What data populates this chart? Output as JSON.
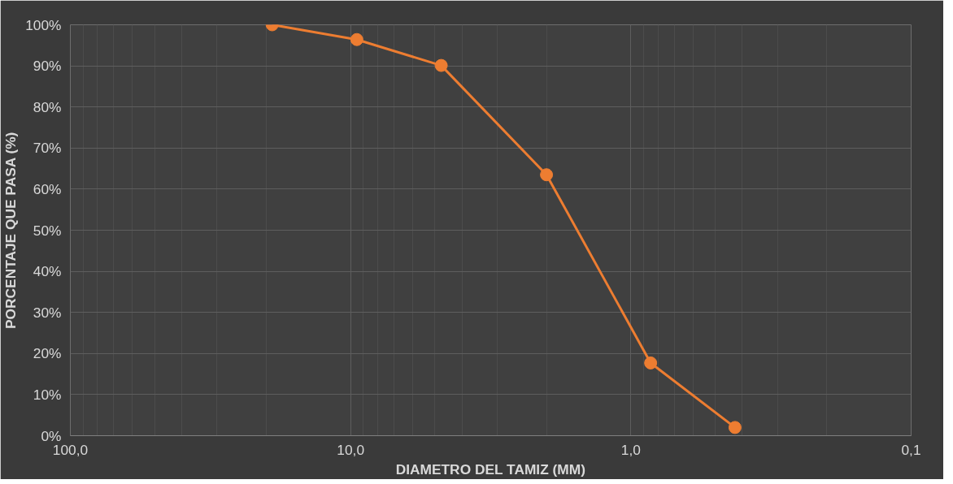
{
  "chart_data": {
    "type": "line",
    "xlabel": "DIAMETRO DEL TAMIZ (MM)",
    "ylabel": "PORCENTAJE QUE PASA (%)",
    "log": "x",
    "xlim": [
      100,
      0.1
    ],
    "xticks": [
      {
        "value": 100,
        "label": "100,0"
      },
      {
        "value": 10,
        "label": "10,0"
      },
      {
        "value": 1,
        "label": "1,0"
      },
      {
        "value": 0.1,
        "label": "0,1"
      }
    ],
    "ylim": [
      0,
      100
    ],
    "yticks": [
      {
        "value": 0,
        "label": "0%"
      },
      {
        "value": 10,
        "label": "10%"
      },
      {
        "value": 20,
        "label": "20%"
      },
      {
        "value": 30,
        "label": "30%"
      },
      {
        "value": 40,
        "label": "40%"
      },
      {
        "value": 50,
        "label": "50%"
      },
      {
        "value": 60,
        "label": "60%"
      },
      {
        "value": 70,
        "label": "70%"
      },
      {
        "value": 80,
        "label": "80%"
      },
      {
        "value": 90,
        "label": "90%"
      },
      {
        "value": 100,
        "label": "100%"
      }
    ],
    "grid": true,
    "marker": "circle",
    "line_style": "solid",
    "series": [
      {
        "color": "#ed7d31",
        "x": [
          19.05,
          9.5,
          4.75,
          2.0,
          0.85,
          0.425
        ],
        "values": [
          100,
          96.4,
          90.1,
          63.5,
          17.7,
          2.0
        ]
      }
    ]
  }
}
